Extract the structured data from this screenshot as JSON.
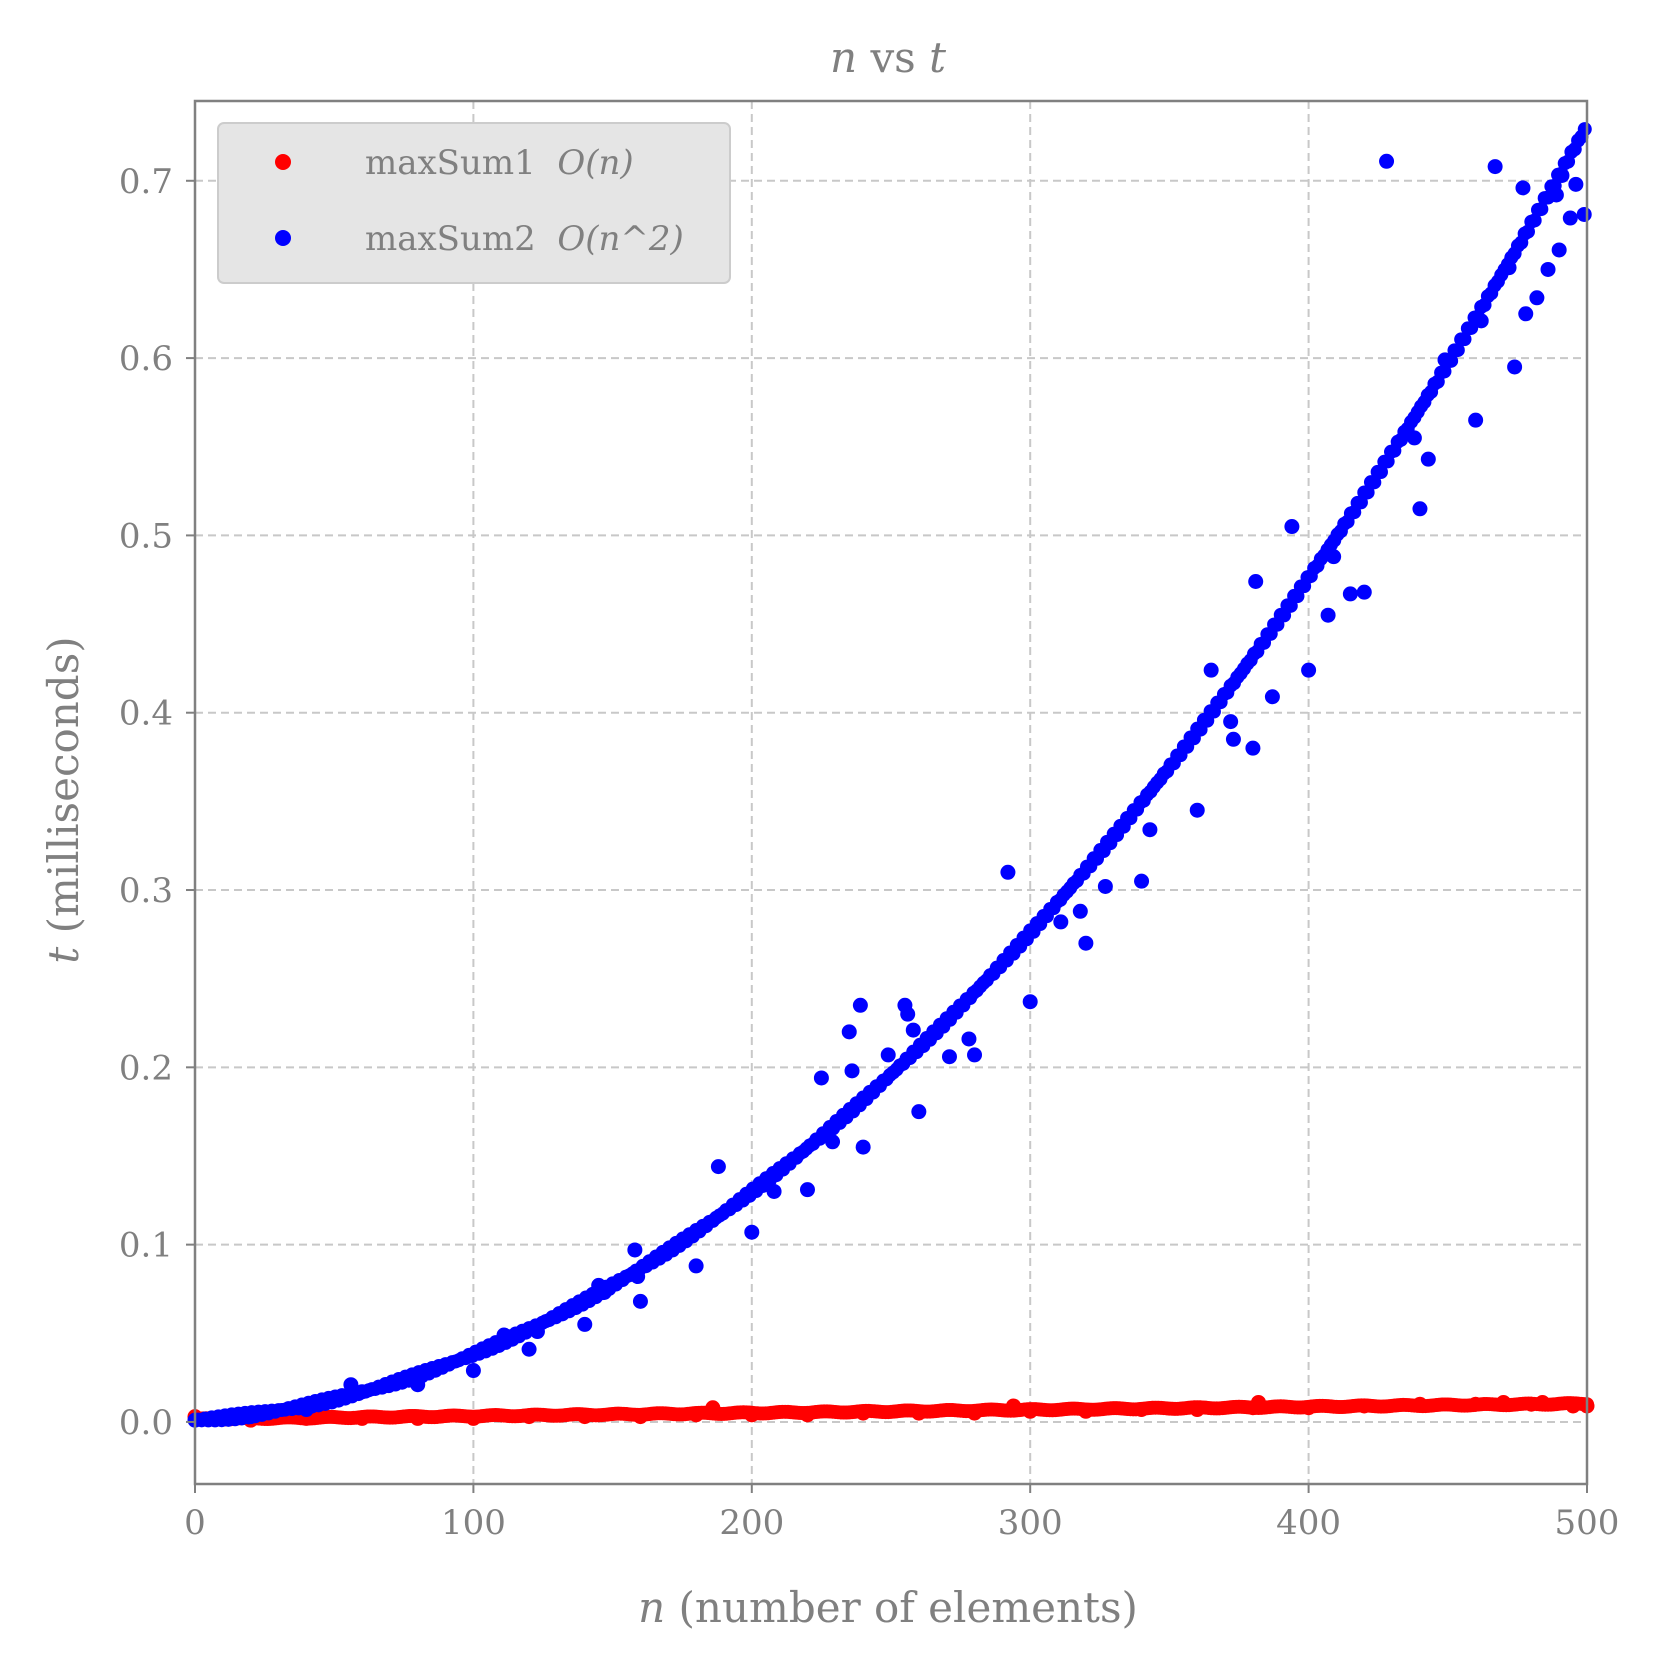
{
  "chart_data": {
    "type": "scatter",
    "title": {
      "var_left": "n",
      "middle": " vs ",
      "var_right": "t"
    },
    "xlabel": {
      "var": "n",
      "rest": " (number of elements)"
    },
    "ylabel": {
      "var": "t",
      "rest": " (milliseconds)"
    },
    "xlim": [
      0,
      500
    ],
    "ylim": [
      -0.035,
      0.745
    ],
    "x_ticks": [
      "0",
      "100",
      "200",
      "300",
      "400",
      "500"
    ],
    "x_tick_values": [
      0,
      100,
      200,
      300,
      400,
      500
    ],
    "y_ticks": [
      "0.0",
      "0.1",
      "0.2",
      "0.3",
      "0.4",
      "0.5",
      "0.6",
      "0.7"
    ],
    "y_tick_values": [
      0.0,
      0.1,
      0.2,
      0.3,
      0.4,
      0.5,
      0.6,
      0.7
    ],
    "grid": true,
    "legend_position": "top-left",
    "series": [
      {
        "name": "maxSum1",
        "complexity": "O(n)",
        "color": "#ff0000",
        "x_range": [
          0,
          500
        ],
        "trend": "linear",
        "points": [
          [
            0,
            0.003
          ],
          [
            20,
            0.001
          ],
          [
            40,
            0.002
          ],
          [
            60,
            0.002
          ],
          [
            80,
            0.002
          ],
          [
            100,
            0.002
          ],
          [
            120,
            0.003
          ],
          [
            140,
            0.003
          ],
          [
            160,
            0.003
          ],
          [
            180,
            0.004
          ],
          [
            186,
            0.008
          ],
          [
            200,
            0.004
          ],
          [
            220,
            0.004
          ],
          [
            240,
            0.005
          ],
          [
            260,
            0.005
          ],
          [
            280,
            0.005
          ],
          [
            294,
            0.009
          ],
          [
            300,
            0.006
          ],
          [
            320,
            0.006
          ],
          [
            340,
            0.007
          ],
          [
            360,
            0.007
          ],
          [
            380,
            0.008
          ],
          [
            382,
            0.011
          ],
          [
            400,
            0.008
          ],
          [
            420,
            0.009
          ],
          [
            440,
            0.01
          ],
          [
            460,
            0.01
          ],
          [
            470,
            0.011
          ],
          [
            480,
            0.01
          ],
          [
            484,
            0.011
          ],
          [
            495,
            0.009
          ],
          [
            500,
            0.009
          ]
        ]
      },
      {
        "name": "maxSum2",
        "complexity": "O(n^2)",
        "color": "#0000ff",
        "x_range": [
          0,
          500
        ],
        "trend": "quadratic",
        "points": [
          [
            0,
            0.001
          ],
          [
            20,
            0.003
          ],
          [
            40,
            0.007
          ],
          [
            56,
            0.021
          ],
          [
            60,
            0.017
          ],
          [
            80,
            0.021
          ],
          [
            100,
            0.029
          ],
          [
            111,
            0.049
          ],
          [
            120,
            0.041
          ],
          [
            123,
            0.051
          ],
          [
            140,
            0.055
          ],
          [
            145,
            0.077
          ],
          [
            147,
            0.073
          ],
          [
            158,
            0.097
          ],
          [
            159,
            0.082
          ],
          [
            160,
            0.068
          ],
          [
            180,
            0.088
          ],
          [
            188,
            0.144
          ],
          [
            200,
            0.107
          ],
          [
            208,
            0.13
          ],
          [
            220,
            0.131
          ],
          [
            225,
            0.194
          ],
          [
            229,
            0.158
          ],
          [
            235,
            0.22
          ],
          [
            236,
            0.198
          ],
          [
            239,
            0.235
          ],
          [
            240,
            0.155
          ],
          [
            249,
            0.207
          ],
          [
            255,
            0.235
          ],
          [
            256,
            0.23
          ],
          [
            258,
            0.221
          ],
          [
            260,
            0.175
          ],
          [
            271,
            0.206
          ],
          [
            278,
            0.216
          ],
          [
            280,
            0.207
          ],
          [
            292,
            0.31
          ],
          [
            300,
            0.237
          ],
          [
            311,
            0.282
          ],
          [
            318,
            0.288
          ],
          [
            320,
            0.27
          ],
          [
            327,
            0.302
          ],
          [
            340,
            0.305
          ],
          [
            343,
            0.334
          ],
          [
            360,
            0.345
          ],
          [
            365,
            0.424
          ],
          [
            372,
            0.395
          ],
          [
            373,
            0.385
          ],
          [
            380,
            0.38
          ],
          [
            381,
            0.474
          ],
          [
            387,
            0.409
          ],
          [
            394,
            0.505
          ],
          [
            400,
            0.424
          ],
          [
            407,
            0.455
          ],
          [
            409,
            0.488
          ],
          [
            415,
            0.467
          ],
          [
            420,
            0.468
          ],
          [
            428,
            0.711
          ],
          [
            438,
            0.555
          ],
          [
            440,
            0.515
          ],
          [
            443,
            0.543
          ],
          [
            449,
            0.599
          ],
          [
            460,
            0.565
          ],
          [
            462,
            0.621
          ],
          [
            467,
            0.708
          ],
          [
            472,
            0.651
          ],
          [
            474,
            0.595
          ],
          [
            477,
            0.696
          ],
          [
            478,
            0.625
          ],
          [
            482,
            0.634
          ],
          [
            486,
            0.65
          ],
          [
            489,
            0.692
          ],
          [
            490,
            0.661
          ],
          [
            491,
            0.703
          ],
          [
            494,
            0.679
          ],
          [
            496,
            0.698
          ],
          [
            499,
            0.681
          ]
        ]
      }
    ]
  }
}
